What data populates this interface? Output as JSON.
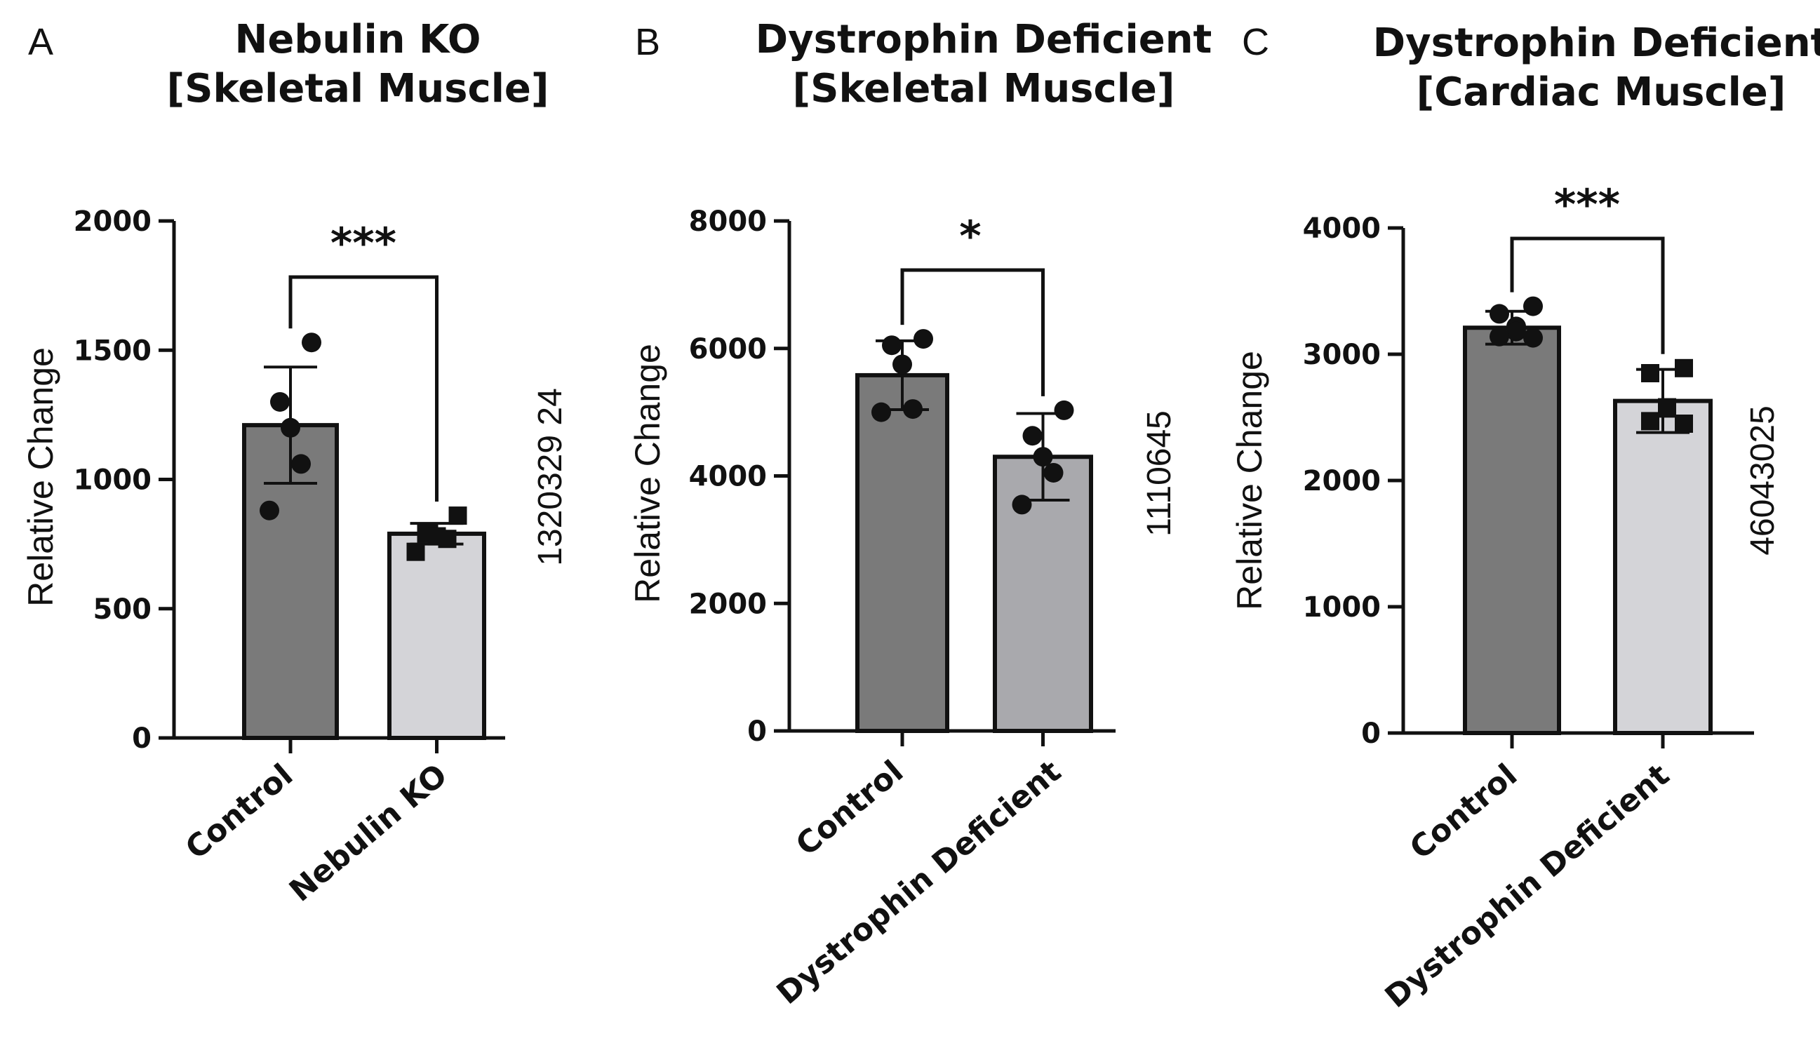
{
  "chart_data": [
    {
      "type": "bar",
      "panel": "A",
      "title": [
        "Nebulin KO",
        "[Skeletal Muscle]"
      ],
      "ylabel": "Relative Change",
      "side_label": "1320329 24",
      "categories": [
        "Control",
        "Nebulin KO"
      ],
      "values": [
        1210,
        790
      ],
      "error": [
        225,
        40
      ],
      "points": [
        [
          1530,
          1300,
          1200,
          1060,
          880
        ],
        [
          860,
          790,
          780,
          770,
          720
        ]
      ],
      "point_markers": [
        "circle",
        "square"
      ],
      "bar_colors": [
        "#7a7a7a",
        "#d4d4d8"
      ],
      "ylim": [
        0,
        2000
      ],
      "yticks": [
        0,
        500,
        1000,
        1500,
        2000
      ],
      "ytick_labels": [
        "0",
        "500",
        "1000",
        "1500",
        "2000"
      ],
      "significance": "***"
    },
    {
      "type": "bar",
      "panel": "B",
      "title": [
        "Dystrophin Deficient",
        "[Skeletal Muscle]"
      ],
      "ylabel": "Relative Change",
      "side_label": "1110645",
      "categories": [
        "Control",
        "Dystrophin Deficient"
      ],
      "values": [
        5580,
        4300
      ],
      "error": [
        540,
        680
      ],
      "points": [
        [
          6150,
          6050,
          5750,
          5050,
          5000
        ],
        [
          5030,
          4630,
          4300,
          4050,
          3550
        ]
      ],
      "point_markers": [
        "circle",
        "circle"
      ],
      "bar_colors": [
        "#7a7a7a",
        "#a9a9ad"
      ],
      "ylim": [
        0,
        8000
      ],
      "yticks": [
        0,
        2000,
        4000,
        6000,
        8000
      ],
      "ytick_labels": [
        "0",
        "2000",
        "4000",
        "6000",
        "8000"
      ],
      "significance": "*"
    },
    {
      "type": "bar",
      "panel": "C",
      "title": [
        "Dystrophin Deficient",
        "[Cardiac Muscle]"
      ],
      "ylabel": "Relative Change",
      "side_label": "46043025",
      "categories": [
        "Control",
        "Dystrophin Deficient"
      ],
      "values": [
        3210,
        2630
      ],
      "error": [
        130,
        250
      ],
      "points": [
        [
          3380,
          3320,
          3220,
          3180,
          3140,
          3130
        ],
        [
          2890,
          2850,
          2580,
          2570,
          2470,
          2450
        ]
      ],
      "point_markers": [
        "circle",
        "square"
      ],
      "bar_colors": [
        "#7a7a7a",
        "#d4d4d8"
      ],
      "ylim": [
        0,
        4000
      ],
      "yticks": [
        0,
        1000,
        2000,
        3000,
        4000
      ],
      "ytick_labels": [
        "0",
        "1000",
        "2000",
        "3000",
        "4000"
      ],
      "significance": "***"
    }
  ]
}
